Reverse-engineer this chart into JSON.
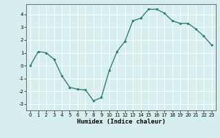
{
  "x": [
    0,
    1,
    2,
    3,
    4,
    5,
    6,
    7,
    8,
    9,
    10,
    11,
    12,
    13,
    14,
    15,
    16,
    17,
    18,
    19,
    20,
    21,
    22,
    23
  ],
  "y": [
    0,
    1.1,
    1.0,
    0.5,
    -0.8,
    -1.7,
    -1.85,
    -1.9,
    -2.75,
    -2.5,
    -0.4,
    1.1,
    1.9,
    3.5,
    3.7,
    4.4,
    4.4,
    4.1,
    3.5,
    3.3,
    3.3,
    2.85,
    2.3,
    1.6
  ],
  "line_color": "#2e7d6e",
  "marker": "o",
  "marker_size": 2.0,
  "linewidth": 1.0,
  "xlabel": "Humidex (Indice chaleur)",
  "ylim": [
    -3.5,
    4.8
  ],
  "xlim": [
    -0.5,
    23.5
  ],
  "yticks": [
    -3,
    -2,
    -1,
    0,
    1,
    2,
    3,
    4
  ],
  "xticks": [
    0,
    1,
    2,
    3,
    4,
    5,
    6,
    7,
    8,
    9,
    10,
    11,
    12,
    13,
    14,
    15,
    16,
    17,
    18,
    19,
    20,
    21,
    22,
    23
  ],
  "bg_color": "#d6eeee",
  "grid_color": "#ffffff",
  "tick_label_fontsize": 5.0,
  "xlabel_fontsize": 6.5,
  "spine_color": "#555555"
}
